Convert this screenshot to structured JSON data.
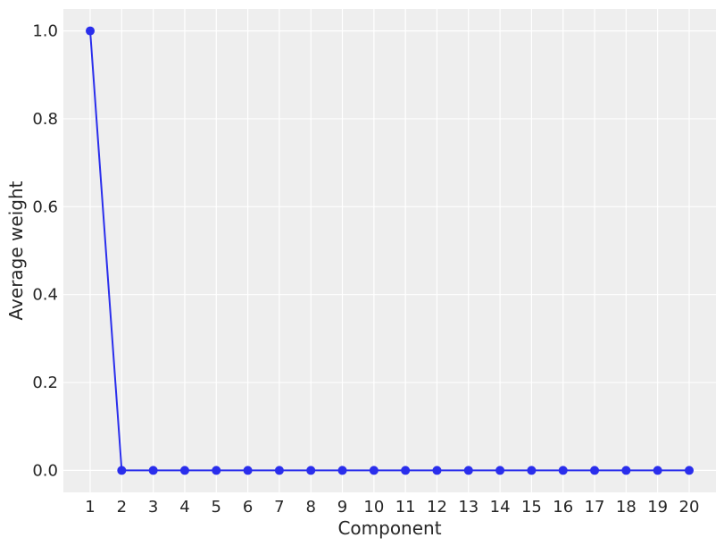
{
  "chart_data": {
    "type": "line",
    "title": "",
    "xlabel": "Component",
    "ylabel": "Average weight",
    "x": [
      1,
      2,
      3,
      4,
      5,
      6,
      7,
      8,
      9,
      10,
      11,
      12,
      13,
      14,
      15,
      16,
      17,
      18,
      19,
      20
    ],
    "x_tick_labels": [
      "1",
      "2",
      "3",
      "4",
      "5",
      "6",
      "7",
      "8",
      "9",
      "10",
      "11",
      "12",
      "13",
      "14",
      "15",
      "16",
      "17",
      "18",
      "19",
      "20"
    ],
    "series": [
      {
        "color": "#2a2eec",
        "marker": "circle",
        "values": [
          1.0,
          0.0,
          0.0,
          0.0,
          0.0,
          0.0,
          0.0,
          0.0,
          0.0,
          0.0,
          0.0,
          0.0,
          0.0,
          0.0,
          0.0,
          0.0,
          0.0,
          0.0,
          0.0,
          0.0
        ]
      }
    ],
    "xlim": [
      0.15,
      20.85
    ],
    "ylim": [
      -0.05,
      1.05
    ],
    "y_ticks": [
      0.0,
      0.2,
      0.4,
      0.6,
      0.8,
      1.0
    ],
    "y_tick_labels": [
      "0.0",
      "0.2",
      "0.4",
      "0.6",
      "0.8",
      "1.0"
    ],
    "grid": true,
    "background_color": "#eeeeee",
    "grid_color": "#ffffff"
  }
}
